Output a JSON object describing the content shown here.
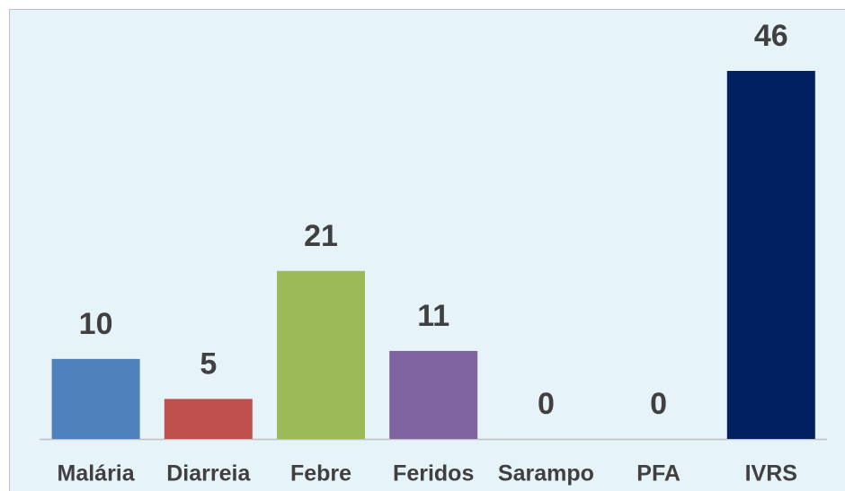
{
  "chart_data": {
    "type": "bar",
    "categories": [
      "Malária",
      "Diarreia",
      "Febre",
      "Feridos",
      "Sarampo",
      "PFA",
      "IVRS"
    ],
    "values": [
      10,
      5,
      21,
      11,
      0,
      0,
      46
    ],
    "colors": [
      "#4f81bd",
      "#c0504d",
      "#9bbb59",
      "#8064a2",
      null,
      null,
      "#002060"
    ]
  }
}
